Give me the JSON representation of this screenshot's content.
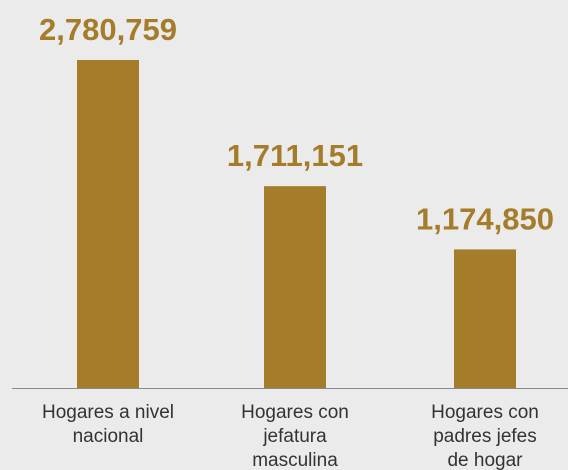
{
  "chart_data": {
    "type": "bar",
    "categories": [
      [
        "Hogares a nivel",
        "nacional"
      ],
      [
        "Hogares con",
        "jefatura",
        "masculina"
      ],
      [
        "Hogares con",
        "padres jefes",
        "de hogar"
      ]
    ],
    "values": [
      2780759,
      1711151,
      1174850
    ],
    "value_labels": [
      "2,780,759",
      "1,711,151",
      "1,174,850"
    ],
    "title": "",
    "xlabel": "",
    "ylabel": "",
    "ylim": [
      0,
      2780759
    ],
    "grid": false,
    "legend": "none"
  },
  "colors": {
    "background": "#ebebeb",
    "bar": "#a57c2a",
    "value_label": "#a57c2a",
    "axis": "#888888",
    "category_label": "#333333"
  }
}
